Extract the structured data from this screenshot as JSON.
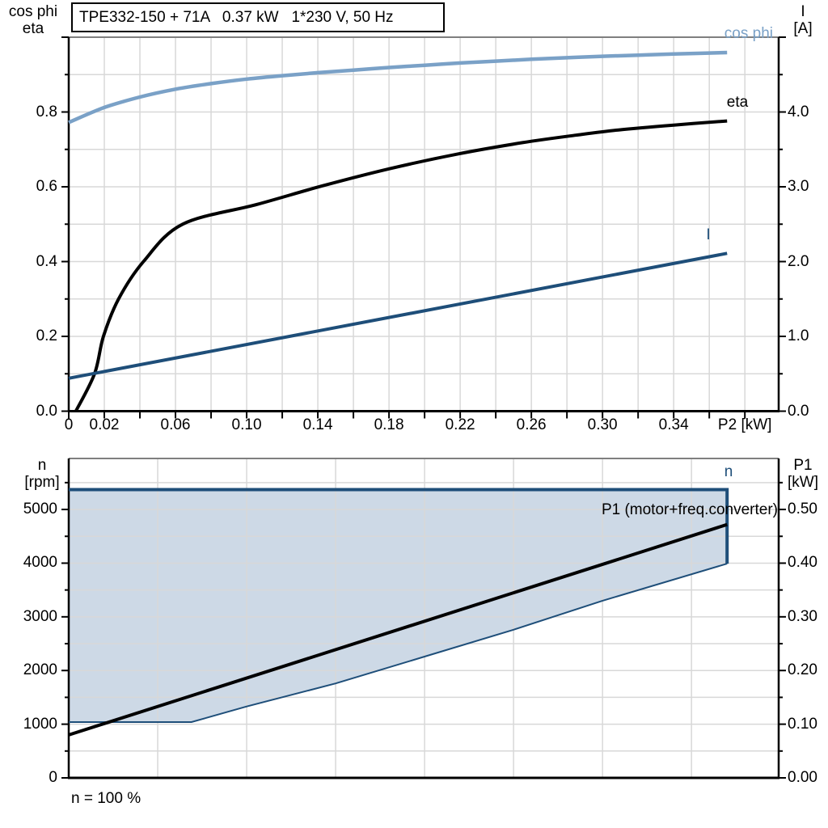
{
  "title_box": {
    "text": "TPE332-150 + 71A   0.37 kW   1*230 V, 50 Hz"
  },
  "colors": {
    "light_blue": "#7AA1C7",
    "dark_blue": "#1E4E79",
    "black": "#000000",
    "area_fill": "#CDD9E6",
    "grid": "#D8D8D8",
    "frame": "#7F7F7F"
  },
  "chart_data": [
    {
      "type": "line",
      "title": "TPE332-150 + 71A   0.37 kW   1*230 V, 50 Hz",
      "x_axis": {
        "label": "P2 [kW]",
        "range": [
          0,
          0.399
        ],
        "grid_step": 0.02,
        "tick_step": 0.02,
        "ticks": [
          {
            "v": 0,
            "label": "0"
          },
          {
            "v": 0.02,
            "label": "0.02"
          },
          {
            "v": 0.06,
            "label": "0.06"
          },
          {
            "v": 0.1,
            "label": "0.10"
          },
          {
            "v": 0.14,
            "label": "0.14"
          },
          {
            "v": 0.18,
            "label": "0.18"
          },
          {
            "v": 0.22,
            "label": "0.22"
          },
          {
            "v": 0.26,
            "label": "0.26"
          },
          {
            "v": 0.3,
            "label": "0.30"
          },
          {
            "v": 0.34,
            "label": "0.34"
          }
        ],
        "unit_label_at": 0.38
      },
      "left_axis": {
        "title_lines": [
          "cos phi",
          "eta"
        ],
        "range": [
          0,
          1.0
        ],
        "grid_step": 0.1,
        "major_step": 0.2,
        "minor_step": 0.1,
        "ticks": [
          {
            "v": 0.0,
            "label": "0.0"
          },
          {
            "v": 0.2,
            "label": "0.2"
          },
          {
            "v": 0.4,
            "label": "0.4"
          },
          {
            "v": 0.6,
            "label": "0.6"
          },
          {
            "v": 0.8,
            "label": "0.8"
          }
        ]
      },
      "right_axis": {
        "title_lines": [
          "I",
          "[A]"
        ],
        "range": [
          0,
          5.0
        ],
        "major_step": 1.0,
        "minor_step": 0.5,
        "ticks": [
          {
            "v": 0.0,
            "label": "0.0"
          },
          {
            "v": 1.0,
            "label": "1.0"
          },
          {
            "v": 2.0,
            "label": "2.0"
          },
          {
            "v": 3.0,
            "label": "3.0"
          },
          {
            "v": 4.0,
            "label": "4.0"
          }
        ]
      },
      "series": [
        {
          "name": "cos phi",
          "axis": "left",
          "color_key": "light_blue",
          "width": 4.5,
          "smooth": true,
          "points": [
            [
              0,
              0.772
            ],
            [
              0.02,
              0.812
            ],
            [
              0.04,
              0.84
            ],
            [
              0.06,
              0.861
            ],
            [
              0.08,
              0.876
            ],
            [
              0.1,
              0.888
            ],
            [
              0.12,
              0.897
            ],
            [
              0.14,
              0.905
            ],
            [
              0.16,
              0.912
            ],
            [
              0.18,
              0.919
            ],
            [
              0.2,
              0.925
            ],
            [
              0.22,
              0.931
            ],
            [
              0.24,
              0.936
            ],
            [
              0.26,
              0.941
            ],
            [
              0.28,
              0.945
            ],
            [
              0.3,
              0.949
            ],
            [
              0.32,
              0.952
            ],
            [
              0.34,
              0.955
            ],
            [
              0.37,
              0.959
            ]
          ]
        },
        {
          "name": "eta",
          "axis": "left",
          "color_key": "black",
          "width": 4,
          "smooth": true,
          "points": [
            [
              0.004,
              0
            ],
            [
              0.0145,
              0.1
            ],
            [
              0.0195,
              0.2
            ],
            [
              0.028,
              0.3
            ],
            [
              0.042,
              0.4
            ],
            [
              0.064,
              0.5
            ],
            [
              0.106,
              0.553
            ],
            [
              0.143,
              0.603
            ],
            [
              0.18,
              0.648
            ],
            [
              0.219,
              0.688
            ],
            [
              0.255,
              0.718
            ],
            [
              0.285,
              0.738
            ],
            [
              0.309,
              0.752
            ],
            [
              0.34,
              0.765
            ],
            [
              0.37,
              0.776
            ]
          ]
        },
        {
          "name": "I",
          "axis": "right",
          "color_key": "dark_blue",
          "width": 4,
          "smooth": false,
          "points": [
            [
              0,
              0.44
            ],
            [
              0.37,
              2.11
            ]
          ]
        }
      ]
    },
    {
      "type": "line+area",
      "x_axis": {
        "label": "",
        "range": [
          0,
          0.399
        ],
        "grid_step": 0.05,
        "ticks": []
      },
      "left_axis": {
        "title_lines": [
          "n",
          "[rpm]"
        ],
        "range": [
          0,
          5950
        ],
        "grid_step": 500,
        "major_step": 1000,
        "minor_step": 500,
        "ticks": [
          {
            "v": 0,
            "label": "0"
          },
          {
            "v": 1000,
            "label": "1000"
          },
          {
            "v": 2000,
            "label": "2000"
          },
          {
            "v": 3000,
            "label": "3000"
          },
          {
            "v": 4000,
            "label": "4000"
          },
          {
            "v": 5000,
            "label": "5000"
          }
        ]
      },
      "right_axis": {
        "title_lines": [
          "P1",
          "[kW]"
        ],
        "range": [
          0,
          0.595
        ],
        "major_step": 0.1,
        "minor_step": 0.05,
        "ticks": [
          {
            "v": 0.0,
            "label": "0.00"
          },
          {
            "v": 0.1,
            "label": "0.10"
          },
          {
            "v": 0.2,
            "label": "0.20"
          },
          {
            "v": 0.3,
            "label": "0.30"
          },
          {
            "v": 0.4,
            "label": "0.40"
          },
          {
            "v": 0.5,
            "label": "0.50"
          }
        ]
      },
      "area": {
        "fill_key": "area_fill",
        "upper": [
          [
            0,
            5370
          ],
          [
            0.37,
            5370
          ]
        ],
        "lower": [
          [
            0,
            1040
          ],
          [
            0.069,
            1040
          ],
          [
            0.1,
            1330
          ],
          [
            0.15,
            1760
          ],
          [
            0.2,
            2260
          ],
          [
            0.25,
            2760
          ],
          [
            0.3,
            3300
          ],
          [
            0.37,
            3990
          ]
        ]
      },
      "series": [
        {
          "name": "n",
          "axis": "left",
          "color_key": "dark_blue",
          "width": 4,
          "smooth": false,
          "points": [
            [
              0,
              5370
            ],
            [
              0.37,
              5370
            ],
            [
              0.37,
              3990
            ]
          ]
        },
        {
          "name": "n-min-boundary",
          "axis": "left",
          "color_key": "dark_blue",
          "width": 2,
          "smooth": false,
          "points": [
            [
              0,
              1040
            ],
            [
              0.069,
              1040
            ],
            [
              0.1,
              1330
            ],
            [
              0.15,
              1760
            ],
            [
              0.2,
              2260
            ],
            [
              0.25,
              2760
            ],
            [
              0.3,
              3300
            ],
            [
              0.37,
              3990
            ]
          ]
        },
        {
          "name": "P1 (motor+freq.converter)",
          "axis": "right",
          "color_key": "black",
          "width": 4,
          "smooth": false,
          "points": [
            [
              0,
              0.08
            ],
            [
              0.37,
              0.472
            ]
          ]
        }
      ],
      "footnote": "n = 100 %"
    }
  ]
}
